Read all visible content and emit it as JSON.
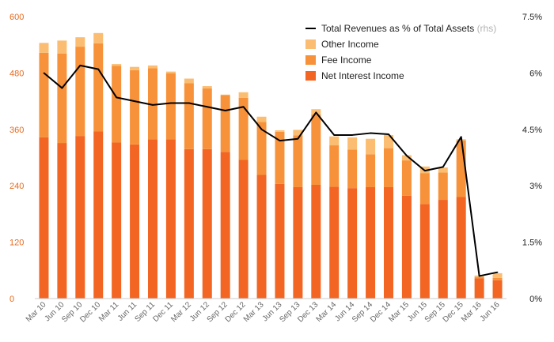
{
  "chart_data": {
    "type": "bar",
    "stacked": true,
    "categories": [
      "Mar 10",
      "Jun 10",
      "Sep 10",
      "Dec 10",
      "Mar 11",
      "Jun 11",
      "Sep 11",
      "Dec 11",
      "Mar 12",
      "Jun 12",
      "Sep 12",
      "Dec 12",
      "Mar 13",
      "Jun 13",
      "Sep 13",
      "Dec 13",
      "Mar 14",
      "Jun 14",
      "Sep 14",
      "Dec 14",
      "Mar 15",
      "Jun 15",
      "Sep 15",
      "Dec 15",
      "Mar 16",
      "Jun 16"
    ],
    "series": [
      {
        "name": "Net Interest Income",
        "color": "#f26522",
        "values": [
          343,
          331,
          346,
          356,
          332,
          328,
          339,
          339,
          318,
          318,
          312,
          295,
          263,
          244,
          237,
          242,
          238,
          235,
          237,
          237,
          219,
          201,
          210,
          216,
          43,
          39
        ]
      },
      {
        "name": "Fee Income",
        "color": "#f7923a",
        "values": [
          180,
          190,
          190,
          187,
          163,
          158,
          151,
          140,
          140,
          129,
          121,
          132,
          113,
          111,
          110,
          150,
          88,
          82,
          70,
          83,
          75,
          66,
          58,
          120,
          3,
          5
        ]
      },
      {
        "name": "Other Income",
        "color": "#fbbd71",
        "values": [
          21,
          28,
          20,
          22,
          4,
          7,
          6,
          4,
          10,
          5,
          1,
          12,
          11,
          3,
          12,
          11,
          19,
          26,
          33,
          28,
          11,
          14,
          11,
          3,
          3,
          10
        ]
      }
    ],
    "line": {
      "name": "Total Revenues as % of Total Assets",
      "name_suffix": "(rhs)",
      "color": "#000000",
      "axis": "right",
      "values": [
        6.0,
        5.6,
        6.2,
        6.1,
        5.35,
        5.25,
        5.15,
        5.2,
        5.2,
        5.1,
        5.0,
        5.1,
        4.5,
        4.2,
        4.25,
        4.95,
        4.35,
        4.35,
        4.4,
        4.37,
        3.8,
        3.4,
        3.5,
        4.3,
        0.6,
        0.7
      ]
    },
    "y_left": {
      "ylim": [
        0,
        600
      ],
      "ticks": [
        "0",
        "120",
        "240",
        "360",
        "480",
        "600"
      ],
      "tick_color": "#e8691c"
    },
    "y_right": {
      "ylim": [
        0,
        7.5
      ],
      "ticks": [
        "0%",
        "1.5%",
        "3%",
        "4.5%",
        "6%",
        "7.5%"
      ]
    },
    "legend": {
      "position": "top-right",
      "order": [
        "Total Revenues as % of Total Assets",
        "Other Income",
        "Fee Income",
        "Net Interest Income"
      ]
    },
    "grid": false,
    "title": "",
    "xlabel": "",
    "ylabel": ""
  }
}
